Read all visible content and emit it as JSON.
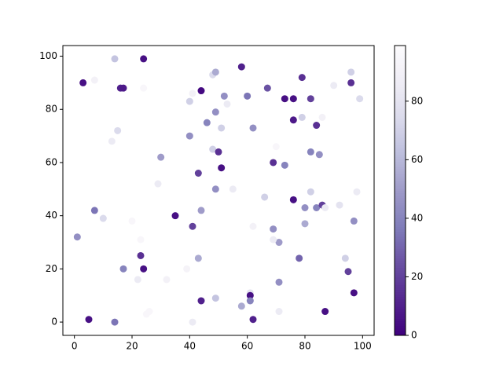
{
  "chart_data": {
    "type": "scatter",
    "x": [
      3,
      7,
      14,
      24,
      16,
      17,
      24,
      15,
      13,
      30,
      40,
      41,
      44,
      48,
      49,
      52,
      53,
      58,
      60,
      62,
      67,
      73,
      76,
      79,
      82,
      79,
      76,
      84,
      86,
      90,
      96,
      96,
      99,
      40,
      46,
      49,
      51,
      48,
      50,
      43,
      51,
      49,
      55,
      29,
      69,
      73,
      70,
      82,
      85,
      66,
      76,
      82,
      80,
      84,
      86,
      87,
      92,
      98,
      97,
      80,
      69,
      71,
      69,
      62,
      78,
      94,
      95,
      97,
      1,
      7,
      10,
      20,
      35,
      44,
      41,
      23,
      23,
      24,
      17,
      22,
      32,
      39,
      43,
      71,
      61,
      61,
      61,
      58,
      62,
      44,
      49,
      71,
      87,
      5,
      14,
      26,
      25,
      41
    ],
    "y": [
      90,
      91,
      99,
      99,
      88,
      88,
      88,
      72,
      68,
      62,
      83,
      86,
      87,
      93,
      94,
      85,
      82,
      96,
      85,
      73,
      88,
      84,
      84,
      92,
      84,
      77,
      76,
      74,
      77,
      89,
      94,
      90,
      84,
      70,
      75,
      79,
      73,
      65,
      64,
      56,
      58,
      50,
      50,
      52,
      60,
      59,
      66,
      64,
      63,
      47,
      46,
      49,
      43,
      43,
      44,
      43,
      44,
      49,
      38,
      37,
      35,
      30,
      31,
      36,
      24,
      24,
      19,
      11,
      32,
      42,
      39,
      38,
      40,
      42,
      36,
      31,
      25,
      20,
      20,
      16,
      16,
      20,
      24,
      15,
      11,
      10,
      8,
      6,
      1,
      8,
      9,
      4,
      4,
      1,
      0,
      4,
      3,
      0
    ],
    "values": [
      5,
      90,
      65,
      5,
      10,
      8,
      95,
      75,
      85,
      50,
      70,
      90,
      3,
      75,
      55,
      45,
      85,
      10,
      35,
      45,
      25,
      5,
      5,
      15,
      20,
      70,
      8,
      15,
      90,
      85,
      70,
      15,
      75,
      45,
      40,
      45,
      70,
      70,
      15,
      20,
      5,
      45,
      85,
      85,
      15,
      40,
      95,
      40,
      45,
      70,
      5,
      70,
      45,
      40,
      20,
      85,
      80,
      85,
      45,
      55,
      45,
      50,
      85,
      90,
      30,
      70,
      20,
      5,
      45,
      35,
      75,
      95,
      5,
      50,
      20,
      95,
      15,
      5,
      40,
      85,
      90,
      92,
      55,
      45,
      80,
      5,
      40,
      55,
      10,
      10,
      65,
      85,
      5,
      5,
      35,
      95,
      95,
      85
    ],
    "colormap": [
      "#3f007d",
      "#54278f",
      "#6a51a3",
      "#807dba",
      "#9e9ac8",
      "#bcbddc",
      "#dadaeb",
      "#efedf5",
      "#fcfbfd"
    ],
    "xlim": [
      -4,
      104
    ],
    "ylim": [
      -5,
      104
    ],
    "xticks": [
      0,
      20,
      40,
      60,
      80,
      100
    ],
    "yticks": [
      0,
      20,
      40,
      60,
      80,
      100
    ],
    "clim": [
      0,
      99
    ],
    "cticks": [
      0,
      20,
      40,
      60,
      80
    ]
  }
}
